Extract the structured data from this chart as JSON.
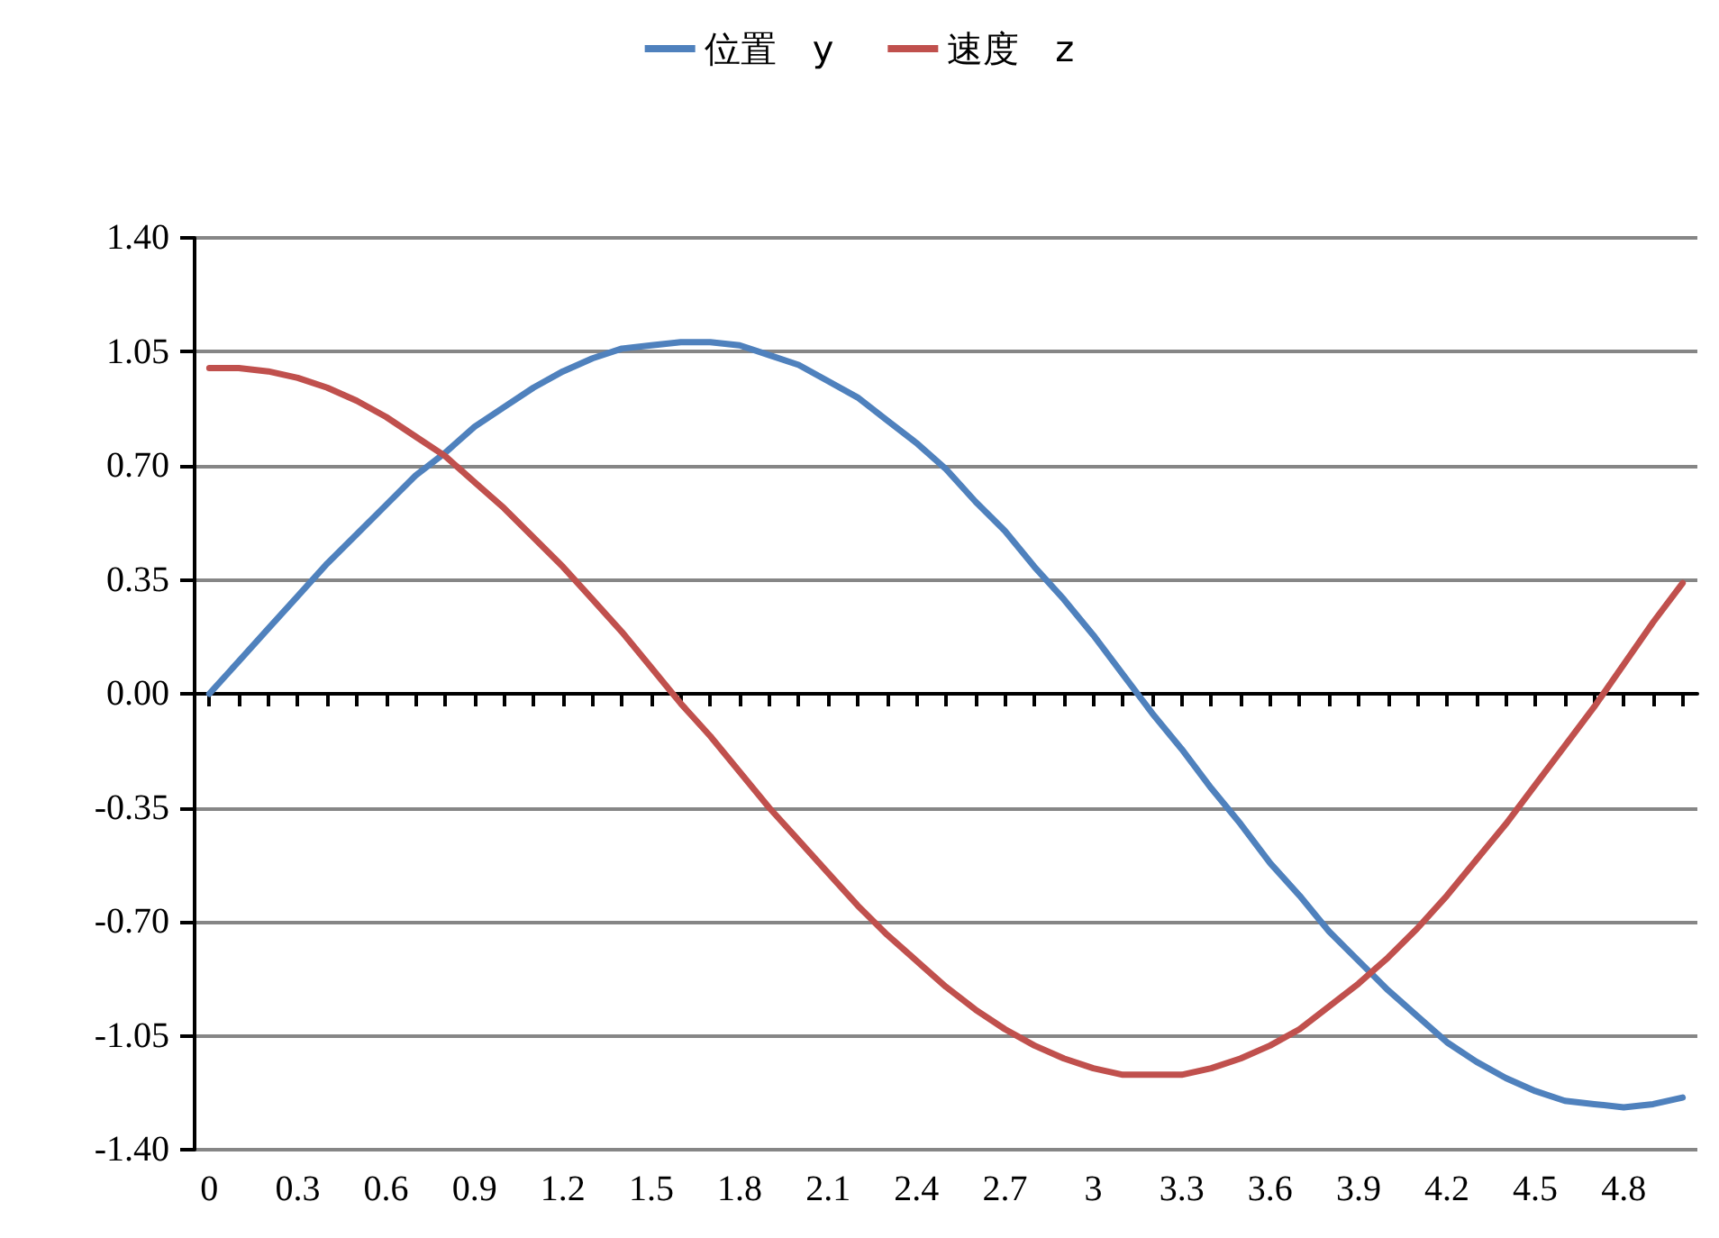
{
  "chart_data": {
    "type": "line",
    "categories": [
      "0",
      null,
      null,
      "0.3",
      null,
      null,
      "0.6",
      null,
      null,
      "0.9",
      null,
      null,
      "1.2",
      null,
      null,
      "1.5",
      null,
      null,
      "1.8",
      null,
      null,
      "2.1",
      null,
      null,
      "2.4",
      null,
      null,
      "2.7",
      null,
      null,
      "3",
      null,
      null,
      "3.3",
      null,
      null,
      "3.6",
      null,
      null,
      "3.9",
      null,
      null,
      "4.2",
      null,
      null,
      "4.5",
      null,
      null,
      "4.8",
      null,
      null
    ],
    "series": [
      {
        "name": "位置　y",
        "color": "#4f81bd",
        "values": [
          0,
          0.1,
          0.2,
          0.3,
          0.4,
          0.49,
          0.58,
          0.67,
          0.74,
          0.82,
          0.88,
          0.94,
          0.99,
          1.03,
          1.06,
          1.07,
          1.08,
          1.08,
          1.07,
          1.04,
          1.01,
          0.96,
          0.91,
          0.84,
          0.77,
          0.69,
          0.59,
          0.5,
          0.39,
          0.29,
          0.18,
          0.06,
          -0.06,
          -0.17,
          -0.29,
          -0.4,
          -0.52,
          -0.62,
          -0.73,
          -0.82,
          -0.91,
          -0.99,
          -1.07,
          -1.13,
          -1.18,
          -1.22,
          -1.25,
          -1.26,
          -1.27,
          -1.26,
          -1.24
        ]
      },
      {
        "name": "速度　z",
        "color": "#c0504d",
        "values": [
          1.0,
          1.0,
          0.99,
          0.97,
          0.94,
          0.9,
          0.85,
          0.79,
          0.73,
          0.65,
          0.57,
          0.48,
          0.39,
          0.29,
          0.19,
          0.08,
          -0.03,
          -0.13,
          -0.24,
          -0.35,
          -0.45,
          -0.55,
          -0.65,
          -0.74,
          -0.82,
          -0.9,
          -0.97,
          -1.03,
          -1.08,
          -1.12,
          -1.15,
          -1.17,
          -1.17,
          -1.17,
          -1.15,
          -1.12,
          -1.08,
          -1.03,
          -0.96,
          -0.89,
          -0.81,
          -0.72,
          -0.62,
          -0.51,
          -0.4,
          -0.28,
          -0.16,
          -0.04,
          0.09,
          0.22,
          0.34
        ]
      }
    ],
    "ylim": [
      -1.4,
      1.4
    ],
    "yticks": [
      {
        "value": -1.4,
        "label": "-1.40"
      },
      {
        "value": -1.05,
        "label": "-1.05"
      },
      {
        "value": -0.7,
        "label": "-0.70"
      },
      {
        "value": -0.35,
        "label": "-0.35"
      },
      {
        "value": 0,
        "label": "0.00"
      },
      {
        "value": 0.35,
        "label": "0.35"
      },
      {
        "value": 0.7,
        "label": "0.70"
      },
      {
        "value": 1.05,
        "label": "1.05"
      },
      {
        "value": 1.4,
        "label": "1.40"
      }
    ],
    "grid": "y",
    "legend": "top",
    "marker": "none",
    "line_style": "solid"
  }
}
